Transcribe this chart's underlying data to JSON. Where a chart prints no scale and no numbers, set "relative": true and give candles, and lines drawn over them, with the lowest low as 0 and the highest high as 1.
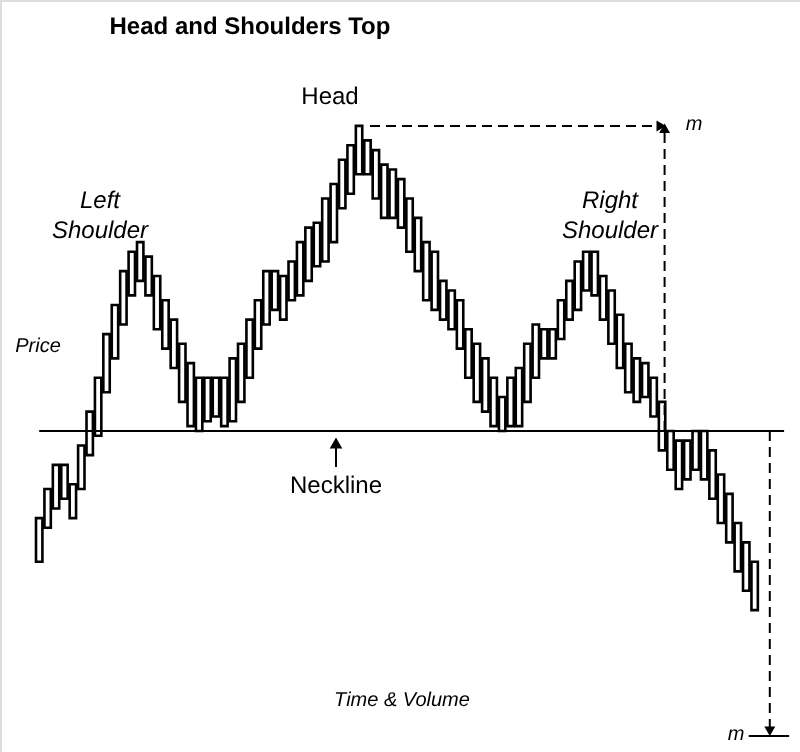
{
  "chart_data": {
    "type": "candlestick",
    "title": "Head and Shoulders Top",
    "xlabel": "Time & Volume",
    "ylabel": "Price",
    "relative": true,
    "tick_labels": false,
    "color": "#000000",
    "categories": [
      null,
      null,
      null,
      null,
      null,
      null,
      null,
      null,
      null,
      null,
      null,
      null,
      null,
      null,
      null,
      null,
      null,
      null,
      null,
      null,
      null,
      null,
      null,
      null,
      null,
      null,
      null,
      null,
      null,
      null,
      null,
      null,
      null,
      null,
      null,
      null,
      null,
      null,
      null,
      null,
      null,
      null,
      null,
      null,
      null,
      null,
      null,
      null,
      null,
      null,
      null,
      null,
      null,
      null,
      null,
      null,
      null,
      null,
      null,
      null,
      null,
      null,
      null,
      null,
      null,
      null,
      null,
      null,
      null,
      null,
      null,
      null,
      null,
      null,
      null,
      null,
      null,
      null,
      null,
      null,
      null,
      null,
      null,
      null,
      null,
      null
    ],
    "ohlc": [
      [
        0.1,
        0.19,
        0.1,
        0.19
      ],
      [
        0.17,
        0.25,
        0.17,
        0.25
      ],
      [
        0.21,
        0.3,
        0.21,
        0.3
      ],
      [
        0.23,
        0.3,
        0.23,
        0.3
      ],
      [
        0.19,
        0.26,
        0.19,
        0.26
      ],
      [
        0.25,
        0.34,
        0.25,
        0.34
      ],
      [
        0.32,
        0.41,
        0.32,
        0.41
      ],
      [
        0.36,
        0.48,
        0.36,
        0.48
      ],
      [
        0.45,
        0.57,
        0.45,
        0.57
      ],
      [
        0.52,
        0.63,
        0.52,
        0.63
      ],
      [
        0.59,
        0.7,
        0.59,
        0.7
      ],
      [
        0.65,
        0.74,
        0.65,
        0.74
      ],
      [
        0.68,
        0.76,
        0.68,
        0.76
      ],
      [
        0.65,
        0.73,
        0.65,
        0.73
      ],
      [
        0.58,
        0.69,
        0.58,
        0.69
      ],
      [
        0.54,
        0.64,
        0.54,
        0.64
      ],
      [
        0.5,
        0.6,
        0.5,
        0.6
      ],
      [
        0.43,
        0.55,
        0.43,
        0.55
      ],
      [
        0.38,
        0.51,
        0.38,
        0.51
      ],
      [
        0.37,
        0.48,
        0.37,
        0.48
      ],
      [
        0.39,
        0.48,
        0.39,
        0.48
      ],
      [
        0.4,
        0.48,
        0.4,
        0.48
      ],
      [
        0.38,
        0.48,
        0.38,
        0.48
      ],
      [
        0.39,
        0.52,
        0.39,
        0.52
      ],
      [
        0.43,
        0.55,
        0.43,
        0.55
      ],
      [
        0.48,
        0.6,
        0.48,
        0.6
      ],
      [
        0.54,
        0.64,
        0.54,
        0.64
      ],
      [
        0.59,
        0.7,
        0.59,
        0.7
      ],
      [
        0.62,
        0.7,
        0.62,
        0.7
      ],
      [
        0.6,
        0.69,
        0.6,
        0.69
      ],
      [
        0.64,
        0.72,
        0.64,
        0.72
      ],
      [
        0.65,
        0.76,
        0.65,
        0.76
      ],
      [
        0.68,
        0.79,
        0.68,
        0.79
      ],
      [
        0.71,
        0.8,
        0.71,
        0.8
      ],
      [
        0.72,
        0.85,
        0.72,
        0.85
      ],
      [
        0.76,
        0.88,
        0.76,
        0.88
      ],
      [
        0.83,
        0.93,
        0.83,
        0.93
      ],
      [
        0.86,
        0.96,
        0.86,
        0.96
      ],
      [
        0.9,
        1.0,
        0.9,
        1.0
      ],
      [
        0.9,
        0.97,
        0.9,
        0.97
      ],
      [
        0.85,
        0.95,
        0.85,
        0.95
      ],
      [
        0.81,
        0.92,
        0.81,
        0.92
      ],
      [
        0.81,
        0.91,
        0.81,
        0.91
      ],
      [
        0.79,
        0.89,
        0.79,
        0.89
      ],
      [
        0.74,
        0.85,
        0.74,
        0.85
      ],
      [
        0.7,
        0.81,
        0.7,
        0.81
      ],
      [
        0.64,
        0.76,
        0.64,
        0.76
      ],
      [
        0.62,
        0.74,
        0.62,
        0.74
      ],
      [
        0.6,
        0.68,
        0.6,
        0.68
      ],
      [
        0.58,
        0.66,
        0.58,
        0.66
      ],
      [
        0.54,
        0.64,
        0.54,
        0.64
      ],
      [
        0.48,
        0.58,
        0.48,
        0.58
      ],
      [
        0.43,
        0.55,
        0.43,
        0.55
      ],
      [
        0.41,
        0.52,
        0.41,
        0.52
      ],
      [
        0.38,
        0.48,
        0.38,
        0.48
      ],
      [
        0.37,
        0.44,
        0.37,
        0.44
      ],
      [
        0.38,
        0.48,
        0.38,
        0.48
      ],
      [
        0.38,
        0.5,
        0.38,
        0.5
      ],
      [
        0.43,
        0.55,
        0.43,
        0.55
      ],
      [
        0.48,
        0.59,
        0.48,
        0.59
      ],
      [
        0.52,
        0.58,
        0.52,
        0.58
      ],
      [
        0.52,
        0.58,
        0.52,
        0.58
      ],
      [
        0.56,
        0.64,
        0.56,
        0.64
      ],
      [
        0.6,
        0.68,
        0.6,
        0.68
      ],
      [
        0.62,
        0.72,
        0.62,
        0.72
      ],
      [
        0.66,
        0.74,
        0.66,
        0.74
      ],
      [
        0.65,
        0.74,
        0.65,
        0.74
      ],
      [
        0.6,
        0.69,
        0.6,
        0.69
      ],
      [
        0.55,
        0.66,
        0.55,
        0.66
      ],
      [
        0.5,
        0.61,
        0.5,
        0.61
      ],
      [
        0.45,
        0.55,
        0.45,
        0.55
      ],
      [
        0.43,
        0.52,
        0.43,
        0.52
      ],
      [
        0.44,
        0.51,
        0.44,
        0.51
      ],
      [
        0.4,
        0.48,
        0.4,
        0.48
      ],
      [
        0.33,
        0.43,
        0.33,
        0.43
      ],
      [
        0.29,
        0.37,
        0.29,
        0.37
      ],
      [
        0.25,
        0.35,
        0.25,
        0.35
      ],
      [
        0.27,
        0.35,
        0.27,
        0.35
      ],
      [
        0.29,
        0.37,
        0.29,
        0.37
      ],
      [
        0.27,
        0.37,
        0.27,
        0.37
      ],
      [
        0.23,
        0.33,
        0.23,
        0.33
      ],
      [
        0.18,
        0.28,
        0.18,
        0.28
      ],
      [
        0.14,
        0.24,
        0.14,
        0.24
      ],
      [
        0.08,
        0.18,
        0.08,
        0.18
      ],
      [
        0.04,
        0.14,
        0.04,
        0.14
      ],
      [
        0.0,
        0.1,
        0.0,
        0.1
      ]
    ],
    "ref_lines": [
      {
        "axis": "y",
        "value": 0.37,
        "color": "#000000"
      }
    ],
    "annotations": [
      "Head",
      "Left Shoulder",
      "Right Shoulder",
      {
        "text": "Neckline",
        "y": 0.37
      },
      "m",
      "m"
    ]
  }
}
